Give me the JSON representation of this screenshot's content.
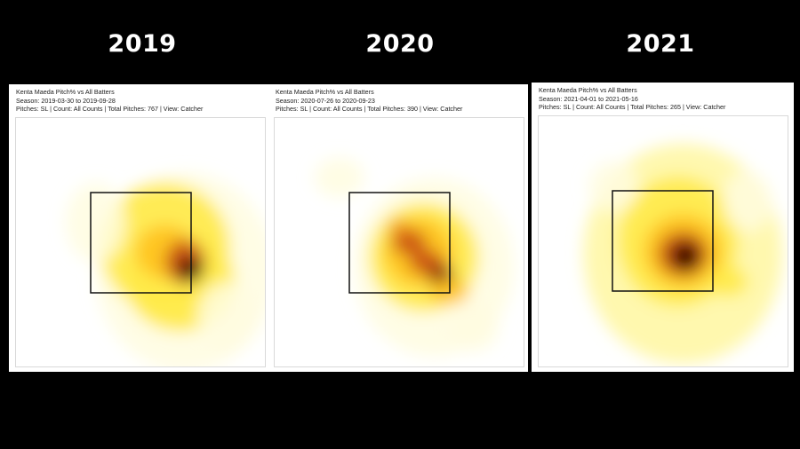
{
  "colors": {
    "background": "#000000",
    "year_text": "#ffffff",
    "panel": "#ffffff",
    "zone_border": "#111111",
    "heat_scale": [
      "#ffffff",
      "#fffde0",
      "#fff7a0",
      "#ffe94a",
      "#ffc21e",
      "#f08a14",
      "#c84a12",
      "#7a1a0c",
      "#200000"
    ]
  },
  "chart_data": [
    {
      "type": "heatmap",
      "year_label": "2019",
      "title": "Kenta Maeda Pitch% vs All Batters",
      "season": "Season: 2019-03-30 to 2019-09-28",
      "filters": "Pitches: SL | Count: All Counts | Total Pitches: 767 | View: Catcher",
      "pitch_type": "SL",
      "total_pitches": 767,
      "view": "Catcher",
      "strike_zone": true,
      "grid": false,
      "blobs": [
        {
          "x": 0.68,
          "y": 0.62,
          "rx": 0.36,
          "ry": 0.4,
          "intensity": 0.18
        },
        {
          "x": 0.6,
          "y": 0.52,
          "rx": 0.26,
          "ry": 0.26,
          "intensity": 0.35
        },
        {
          "x": 0.66,
          "y": 0.66,
          "rx": 0.22,
          "ry": 0.2,
          "intensity": 0.4
        },
        {
          "x": 0.6,
          "y": 0.54,
          "rx": 0.12,
          "ry": 0.11,
          "intensity": 0.55
        },
        {
          "x": 0.68,
          "y": 0.58,
          "rx": 0.08,
          "ry": 0.09,
          "intensity": 0.78
        },
        {
          "x": 0.7,
          "y": 0.61,
          "rx": 0.05,
          "ry": 0.05,
          "intensity": 1.0
        },
        {
          "x": 0.32,
          "y": 0.42,
          "rx": 0.12,
          "ry": 0.16,
          "intensity": 0.12
        },
        {
          "x": 0.85,
          "y": 0.8,
          "rx": 0.12,
          "ry": 0.14,
          "intensity": 0.12
        }
      ]
    },
    {
      "type": "heatmap",
      "year_label": "2020",
      "title": "Kenta Maeda Pitch% vs All Batters",
      "season": "Season: 2020-07-26 to 2020-09-23",
      "filters": "Pitches: SL | Count: All Counts | Total Pitches: 390 | View: Catcher",
      "pitch_type": "SL",
      "total_pitches": 390,
      "view": "Catcher",
      "strike_zone": true,
      "grid": false,
      "blobs": [
        {
          "x": 0.64,
          "y": 0.6,
          "rx": 0.32,
          "ry": 0.36,
          "intensity": 0.18
        },
        {
          "x": 0.6,
          "y": 0.56,
          "rx": 0.22,
          "ry": 0.22,
          "intensity": 0.36
        },
        {
          "x": 0.58,
          "y": 0.54,
          "rx": 0.14,
          "ry": 0.14,
          "intensity": 0.5
        },
        {
          "x": 0.54,
          "y": 0.5,
          "rx": 0.07,
          "ry": 0.05,
          "intensity": 0.72
        },
        {
          "x": 0.61,
          "y": 0.58,
          "rx": 0.07,
          "ry": 0.05,
          "intensity": 0.78
        },
        {
          "x": 0.67,
          "y": 0.64,
          "rx": 0.05,
          "ry": 0.05,
          "intensity": 0.92
        },
        {
          "x": 0.5,
          "y": 0.44,
          "rx": 0.04,
          "ry": 0.03,
          "intensity": 0.65
        },
        {
          "x": 0.7,
          "y": 0.7,
          "rx": 0.08,
          "ry": 0.05,
          "intensity": 0.55
        },
        {
          "x": 0.26,
          "y": 0.24,
          "rx": 0.1,
          "ry": 0.08,
          "intensity": 0.1
        },
        {
          "x": 0.8,
          "y": 0.84,
          "rx": 0.1,
          "ry": 0.1,
          "intensity": 0.12
        }
      ]
    },
    {
      "type": "heatmap",
      "year_label": "2021",
      "title": "Kenta Maeda Pitch% vs All Batters",
      "season": "Season: 2021-04-01 to 2021-05-16",
      "filters": "Pitches: SL | Count: All Counts | Total Pitches: 265 | View: Catcher",
      "pitch_type": "SL",
      "total_pitches": 265,
      "view": "Catcher",
      "strike_zone": true,
      "grid": false,
      "blobs": [
        {
          "x": 0.58,
          "y": 0.55,
          "rx": 0.4,
          "ry": 0.44,
          "intensity": 0.22
        },
        {
          "x": 0.56,
          "y": 0.5,
          "rx": 0.24,
          "ry": 0.26,
          "intensity": 0.35
        },
        {
          "x": 0.58,
          "y": 0.54,
          "rx": 0.16,
          "ry": 0.15,
          "intensity": 0.52
        },
        {
          "x": 0.58,
          "y": 0.55,
          "rx": 0.1,
          "ry": 0.09,
          "intensity": 0.75
        },
        {
          "x": 0.59,
          "y": 0.56,
          "rx": 0.06,
          "ry": 0.06,
          "intensity": 1.0
        },
        {
          "x": 0.76,
          "y": 0.66,
          "rx": 0.08,
          "ry": 0.06,
          "intensity": 0.42
        },
        {
          "x": 0.3,
          "y": 0.28,
          "rx": 0.1,
          "ry": 0.1,
          "intensity": 0.12
        },
        {
          "x": 0.84,
          "y": 0.34,
          "rx": 0.1,
          "ry": 0.12,
          "intensity": 0.14
        }
      ]
    }
  ]
}
